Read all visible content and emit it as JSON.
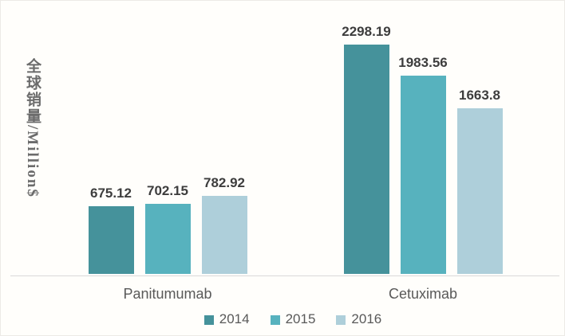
{
  "chart_data": {
    "type": "bar",
    "title": "",
    "ylabel": "全球销量/Million$",
    "categories": [
      "Panitumumab",
      "Cetuximab"
    ],
    "series": [
      {
        "name": "2014",
        "color": "#45929b",
        "values": [
          675.12,
          2298.19
        ]
      },
      {
        "name": "2015",
        "color": "#57b2be",
        "values": [
          702.15,
          1983.56
        ]
      },
      {
        "name": "2016",
        "color": "#aecfda",
        "values": [
          782.92,
          1663.8
        ]
      }
    ],
    "data_labels": true,
    "legend_position": "bottom",
    "grid": false,
    "y_axis_visible": false,
    "x_axis_line_color": "#d9d9d9",
    "value_label_color": "#3d3d3d",
    "category_label_color": "#595959"
  }
}
